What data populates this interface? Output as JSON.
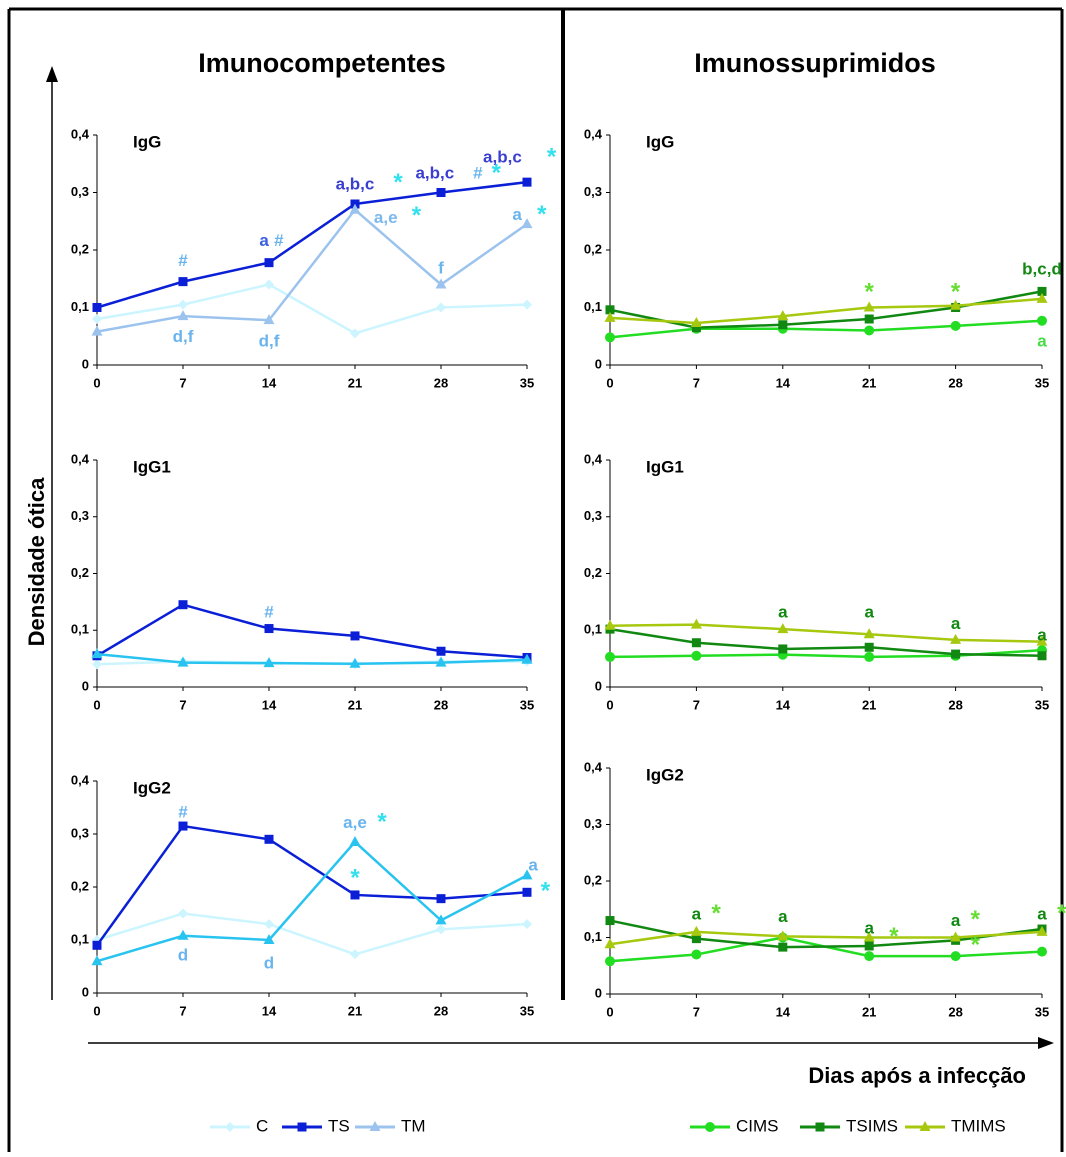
{
  "figure": {
    "titles": [
      "Imunocompetentes",
      "Imunossuprimidos"
    ],
    "y_label": "Densidade ótica",
    "x_label": "Dias após a infecção"
  },
  "chart_data": [
    {
      "type": "line",
      "title": "IgG",
      "x": [
        0,
        7,
        14,
        21,
        28,
        35
      ],
      "xlim": [
        0,
        35
      ],
      "xticks": [
        0,
        7,
        14,
        21,
        28,
        35
      ],
      "ylim": [
        0,
        0.4
      ],
      "yticks": [
        0,
        {
          "value": 0.1,
          "label": "0,1"
        },
        {
          "value": 0.2,
          "label": "0,2"
        },
        {
          "value": 0.3,
          "label": "0,3"
        },
        {
          "value": 0.4,
          "label": "0,4"
        }
      ],
      "series": [
        {
          "name": "C",
          "color": "#ccf5ff",
          "marker": "diamond",
          "values": [
            0.08,
            0.105,
            0.14,
            0.055,
            0.1,
            0.105
          ]
        },
        {
          "name": "TS",
          "color": "#0a1fd6",
          "marker": "square",
          "values": [
            0.1,
            0.145,
            0.178,
            0.28,
            0.3,
            0.318
          ]
        },
        {
          "name": "TM",
          "color": "#9cc3ee",
          "marker": "triangle",
          "values": [
            0.058,
            0.085,
            0.078,
            0.27,
            0.14,
            0.245
          ]
        }
      ],
      "annotations": [
        {
          "text": "#",
          "x": 7,
          "y": 0.18,
          "color": "#6ab4ee"
        },
        {
          "text": "d,f",
          "x": 7,
          "y": 0.048,
          "color": "#6ab4ee"
        },
        {
          "text": "a",
          "x": 13.6,
          "y": 0.215,
          "color": "#3a5fe0"
        },
        {
          "text": "#",
          "x": 14.8,
          "y": 0.215,
          "color": "#6ab4ee"
        },
        {
          "text": "d,f",
          "x": 14,
          "y": 0.04,
          "color": "#6ab4ee"
        },
        {
          "text": "a,b,c",
          "x": 21,
          "y": 0.313,
          "color": "#3a3fd0"
        },
        {
          "text": "*",
          "x": 24.5,
          "y": 0.315,
          "color": "#33e0ee"
        },
        {
          "text": "a,e",
          "x": 23.5,
          "y": 0.255,
          "color": "#7ab8ee"
        },
        {
          "text": "*",
          "x": 26,
          "y": 0.258,
          "color": "#33e0ee"
        },
        {
          "text": "f",
          "x": 28,
          "y": 0.167,
          "color": "#6ab4ee"
        },
        {
          "text": "a,b,c",
          "x": 27.5,
          "y": 0.332,
          "color": "#3a3fd0"
        },
        {
          "text": "#",
          "x": 31,
          "y": 0.332,
          "color": "#6ab4ee"
        },
        {
          "text": "*",
          "x": 32.5,
          "y": 0.332,
          "color": "#33e0ee"
        },
        {
          "text": "a,b,c",
          "x": 33,
          "y": 0.36,
          "color": "#3a3fd0"
        },
        {
          "text": "*",
          "x": 37,
          "y": 0.36,
          "color": "#33e0ee"
        },
        {
          "text": "a",
          "x": 34.2,
          "y": 0.26,
          "color": "#6ab4ee"
        },
        {
          "text": "*",
          "x": 36.2,
          "y": 0.26,
          "color": "#33e0ee"
        }
      ]
    },
    {
      "type": "line",
      "title": "IgG1",
      "x": [
        0,
        7,
        14,
        21,
        28,
        35
      ],
      "xlim": [
        0,
        35
      ],
      "xticks": [
        0,
        7,
        14,
        21,
        28,
        35
      ],
      "ylim": [
        0,
        0.4
      ],
      "yticks": [
        0,
        {
          "value": 0.1,
          "label": "0,1"
        },
        {
          "value": 0.2,
          "label": "0,2"
        },
        {
          "value": 0.3,
          "label": "0,3"
        },
        {
          "value": 0.4,
          "label": "0,4"
        }
      ],
      "series": [
        {
          "name": "C",
          "color": "#ccf5ff",
          "marker": "diamond",
          "values": [
            0.04,
            0.045,
            0.043,
            0.04,
            0.045,
            0.045
          ]
        },
        {
          "name": "TS",
          "color": "#0a1fd6",
          "marker": "square",
          "values": [
            0.055,
            0.145,
            0.103,
            0.09,
            0.063,
            0.052
          ]
        },
        {
          "name": "TM",
          "color": "#29c3f0",
          "marker": "triangle",
          "values": [
            0.058,
            0.043,
            0.042,
            0.041,
            0.043,
            0.048
          ]
        }
      ],
      "annotations": [
        {
          "text": "#",
          "x": 14,
          "y": 0.13,
          "color": "#6ab4ee"
        }
      ]
    },
    {
      "type": "line",
      "title": "IgG2",
      "x": [
        0,
        7,
        14,
        21,
        28,
        35
      ],
      "xlim": [
        0,
        35
      ],
      "xticks": [
        0,
        7,
        14,
        21,
        28,
        35
      ],
      "ylim": [
        0,
        0.4
      ],
      "yticks": [
        0,
        {
          "value": 0.1,
          "label": "0,1"
        },
        {
          "value": 0.2,
          "label": "0,2"
        },
        {
          "value": 0.3,
          "label": "0,3"
        },
        {
          "value": 0.4,
          "label": "0,4"
        }
      ],
      "series": [
        {
          "name": "C",
          "color": "#ccf5ff",
          "marker": "diamond",
          "values": [
            0.1,
            0.15,
            0.13,
            0.073,
            0.12,
            0.13
          ]
        },
        {
          "name": "TS",
          "color": "#0a1fd6",
          "marker": "square",
          "values": [
            0.09,
            0.315,
            0.29,
            0.185,
            0.178,
            0.19
          ]
        },
        {
          "name": "TM",
          "color": "#29c3f0",
          "marker": "triangle",
          "values": [
            0.06,
            0.108,
            0.1,
            0.285,
            0.137,
            0.222
          ]
        }
      ],
      "annotations": [
        {
          "text": "#",
          "x": 7,
          "y": 0.34,
          "color": "#6ab4ee"
        },
        {
          "text": "d",
          "x": 7,
          "y": 0.07,
          "color": "#6ab4ee"
        },
        {
          "text": "d",
          "x": 14,
          "y": 0.055,
          "color": "#6ab4ee"
        },
        {
          "text": "a,e",
          "x": 21,
          "y": 0.32,
          "color": "#6ab4ee"
        },
        {
          "text": "*",
          "x": 23.2,
          "y": 0.32,
          "color": "#33e0ee"
        },
        {
          "text": "*",
          "x": 21,
          "y": 0.215,
          "color": "#33e0ee"
        },
        {
          "text": "a",
          "x": 35.5,
          "y": 0.24,
          "color": "#6ab4ee"
        },
        {
          "text": "*",
          "x": 36.5,
          "y": 0.19,
          "color": "#33e0ee"
        }
      ]
    },
    {
      "type": "line",
      "title": "IgG",
      "x": [
        0,
        7,
        14,
        21,
        28,
        35
      ],
      "xlim": [
        0,
        35
      ],
      "xticks": [
        0,
        7,
        14,
        21,
        28,
        35
      ],
      "ylim": [
        0,
        0.4
      ],
      "yticks": [
        0,
        {
          "value": 0.1,
          "label": "0,1"
        },
        {
          "value": 0.2,
          "label": "0,2"
        },
        {
          "value": 0.3,
          "label": "0,3"
        },
        {
          "value": 0.4,
          "label": "0,4"
        }
      ],
      "series": [
        {
          "name": "CIMS",
          "color": "#22dd22",
          "marker": "circle",
          "values": [
            0.048,
            0.063,
            0.063,
            0.06,
            0.068,
            0.077
          ]
        },
        {
          "name": "TSIMS",
          "color": "#118811",
          "marker": "square",
          "values": [
            0.096,
            0.065,
            0.07,
            0.08,
            0.1,
            0.128
          ]
        },
        {
          "name": "TMIMS",
          "color": "#a6c80f",
          "marker": "triangle",
          "values": [
            0.082,
            0.073,
            0.085,
            0.1,
            0.103,
            0.115
          ]
        }
      ],
      "annotations": [
        {
          "text": "*",
          "x": 21,
          "y": 0.125,
          "color": "#66dd33"
        },
        {
          "text": "*",
          "x": 28,
          "y": 0.125,
          "color": "#66dd33"
        },
        {
          "text": "b,c,d",
          "x": 35,
          "y": 0.165,
          "color": "#118811"
        },
        {
          "text": "a",
          "x": 35,
          "y": 0.04,
          "color": "#44dd44"
        }
      ]
    },
    {
      "type": "line",
      "title": "IgG1",
      "x": [
        0,
        7,
        14,
        21,
        28,
        35
      ],
      "xlim": [
        0,
        35
      ],
      "xticks": [
        0,
        7,
        14,
        21,
        28,
        35
      ],
      "ylim": [
        0,
        0.4
      ],
      "yticks": [
        0,
        {
          "value": 0.1,
          "label": "0,1"
        },
        {
          "value": 0.2,
          "label": "0,2"
        },
        {
          "value": 0.3,
          "label": "0,3"
        },
        {
          "value": 0.4,
          "label": "0,4"
        }
      ],
      "series": [
        {
          "name": "CIMS",
          "color": "#22dd22",
          "marker": "circle",
          "values": [
            0.053,
            0.055,
            0.057,
            0.053,
            0.055,
            0.065
          ]
        },
        {
          "name": "TSIMS",
          "color": "#118811",
          "marker": "square",
          "values": [
            0.102,
            0.078,
            0.067,
            0.07,
            0.058,
            0.055
          ]
        },
        {
          "name": "TMIMS",
          "color": "#a6c80f",
          "marker": "triangle",
          "values": [
            0.108,
            0.11,
            0.102,
            0.093,
            0.083,
            0.08
          ]
        }
      ],
      "annotations": [
        {
          "text": "a",
          "x": 14,
          "y": 0.13,
          "color": "#118811"
        },
        {
          "text": "a",
          "x": 21,
          "y": 0.13,
          "color": "#118811"
        },
        {
          "text": "a",
          "x": 28,
          "y": 0.11,
          "color": "#118811"
        },
        {
          "text": "a",
          "x": 35,
          "y": 0.09,
          "color": "#118811"
        }
      ]
    },
    {
      "type": "line",
      "title": "IgG2",
      "x": [
        0,
        7,
        14,
        21,
        28,
        35
      ],
      "xlim": [
        0,
        35
      ],
      "xticks": [
        0,
        7,
        14,
        21,
        28,
        35
      ],
      "ylim": [
        0,
        0.4
      ],
      "yticks": [
        0,
        {
          "value": 0.1,
          "label": "0,1"
        },
        {
          "value": 0.2,
          "label": "0,2"
        },
        {
          "value": 0.3,
          "label": "0,3"
        },
        {
          "value": 0.4,
          "label": "0,4"
        }
      ],
      "series": [
        {
          "name": "CIMS",
          "color": "#22dd22",
          "marker": "circle",
          "values": [
            0.058,
            0.07,
            0.1,
            0.067,
            0.067,
            0.075
          ]
        },
        {
          "name": "TSIMS",
          "color": "#118811",
          "marker": "square",
          "values": [
            0.13,
            0.098,
            0.083,
            0.085,
            0.095,
            0.115
          ]
        },
        {
          "name": "TMIMS",
          "color": "#a6c80f",
          "marker": "triangle",
          "values": [
            0.088,
            0.11,
            0.102,
            0.1,
            0.1,
            0.11
          ]
        }
      ],
      "annotations": [
        {
          "text": "a",
          "x": 7,
          "y": 0.14,
          "color": "#118811"
        },
        {
          "text": "*",
          "x": 8.6,
          "y": 0.14,
          "color": "#66dd33"
        },
        {
          "text": "a",
          "x": 14,
          "y": 0.135,
          "color": "#118811"
        },
        {
          "text": "a",
          "x": 21,
          "y": 0.115,
          "color": "#118811"
        },
        {
          "text": "*",
          "x": 23,
          "y": 0.1,
          "color": "#66dd33"
        },
        {
          "text": "a",
          "x": 28,
          "y": 0.128,
          "color": "#118811"
        },
        {
          "text": "*",
          "x": 29.6,
          "y": 0.13,
          "color": "#66dd33"
        },
        {
          "text": "*",
          "x": 29.6,
          "y": 0.085,
          "color": "#66dd33"
        },
        {
          "text": "a",
          "x": 35,
          "y": 0.14,
          "color": "#118811"
        },
        {
          "text": "*",
          "x": 36.6,
          "y": 0.14,
          "color": "#66dd33"
        }
      ]
    }
  ]
}
